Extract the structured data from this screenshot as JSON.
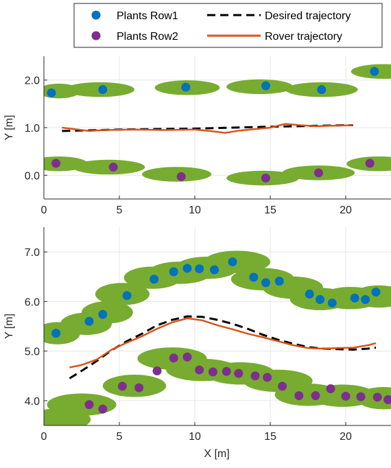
{
  "colors": {
    "row1": "#0072BD",
    "row2": "#7E2F8E",
    "desired": "#000000",
    "rover": "#D95319",
    "foliage": "#77AC30",
    "grid": "#e5e5e5",
    "axis": "#262626"
  },
  "legend": {
    "placement": "top",
    "entries": [
      {
        "label": "Plants Row1",
        "marker": "circle",
        "color": "#0072BD"
      },
      {
        "label": "Desired trajectory",
        "marker": "dashed-line",
        "color": "#000000"
      },
      {
        "label": "Plants Row2",
        "marker": "circle",
        "color": "#7E2F8E"
      },
      {
        "label": "Rover trajectory",
        "marker": "solid-line",
        "color": "#D95319"
      }
    ]
  },
  "chart_data": [
    {
      "type": "scatter",
      "ylabel": "Y [m]",
      "xlabel": "",
      "xlim": [
        0,
        23
      ],
      "ylim": [
        -0.5,
        2.5
      ],
      "xticks": [
        "0",
        "5",
        "10",
        "15",
        "20"
      ],
      "yticks": [
        "0.0",
        "1.0",
        "2.0"
      ],
      "ytick_values": [
        0,
        1,
        2
      ],
      "grid": true,
      "row1": [
        [
          0.5,
          1.73
        ],
        [
          3.9,
          1.8
        ],
        [
          9.4,
          1.85
        ],
        [
          14.7,
          1.88
        ],
        [
          18.4,
          1.8
        ],
        [
          21.9,
          2.18
        ]
      ],
      "row2": [
        [
          0.8,
          0.25
        ],
        [
          4.6,
          0.17
        ],
        [
          9.1,
          -0.03
        ],
        [
          14.7,
          -0.06
        ],
        [
          18.2,
          0.05
        ],
        [
          21.6,
          0.25
        ]
      ],
      "foliage_row1": [
        [
          1.0,
          1.77,
          2.8
        ],
        [
          3.7,
          1.8,
          4.6
        ],
        [
          9.5,
          1.84,
          4.3
        ],
        [
          14.3,
          1.86,
          4.4
        ],
        [
          18.4,
          1.8,
          4.8
        ],
        [
          22.5,
          2.18,
          4.3
        ]
      ],
      "foliage_row2": [
        [
          1.0,
          0.24,
          3.8
        ],
        [
          4.3,
          0.17,
          4.8
        ],
        [
          8.8,
          0.02,
          4.6
        ],
        [
          14.5,
          -0.06,
          4.8
        ],
        [
          18.2,
          0.05,
          4.8
        ],
        [
          22.2,
          0.24,
          4.3
        ]
      ],
      "desired_trajectory": [
        [
          1.2,
          0.93
        ],
        [
          5,
          0.96
        ],
        [
          10,
          0.98
        ],
        [
          15,
          1.02
        ],
        [
          20,
          1.05
        ],
        [
          20.5,
          1.05
        ]
      ],
      "rover_trajectory": [
        [
          1.2,
          1.0
        ],
        [
          2,
          0.97
        ],
        [
          3,
          0.93
        ],
        [
          4,
          0.95
        ],
        [
          6,
          0.96
        ],
        [
          8,
          0.95
        ],
        [
          10,
          0.96
        ],
        [
          11,
          0.93
        ],
        [
          12,
          0.89
        ],
        [
          13,
          0.94
        ],
        [
          14,
          0.97
        ],
        [
          15,
          1.0
        ],
        [
          16,
          1.08
        ],
        [
          17,
          1.05
        ],
        [
          18,
          1.03
        ],
        [
          19,
          1.04
        ],
        [
          20.5,
          1.05
        ]
      ]
    },
    {
      "type": "scatter",
      "ylabel": "Y [m]",
      "xlabel": "X [m]",
      "xlim": [
        0,
        23
      ],
      "ylim": [
        3.5,
        7.5
      ],
      "xticks": [
        "0",
        "5",
        "10",
        "15",
        "20"
      ],
      "yticks": [
        "4.0",
        "5.0",
        "6.0",
        "7.0"
      ],
      "ytick_values": [
        4,
        5,
        6,
        7
      ],
      "grid": true,
      "row1": [
        [
          0.8,
          5.36
        ],
        [
          3.0,
          5.6
        ],
        [
          3.9,
          5.74
        ],
        [
          5.5,
          6.12
        ],
        [
          7.3,
          6.45
        ],
        [
          8.6,
          6.6
        ],
        [
          9.5,
          6.67
        ],
        [
          10.3,
          6.66
        ],
        [
          11.3,
          6.64
        ],
        [
          12.5,
          6.8
        ],
        [
          13.9,
          6.49
        ],
        [
          14.7,
          6.38
        ],
        [
          15.6,
          6.41
        ],
        [
          17.6,
          6.15
        ],
        [
          18.3,
          6.04
        ],
        [
          19.1,
          5.97
        ],
        [
          20.6,
          6.07
        ],
        [
          21.3,
          6.04
        ],
        [
          22.0,
          6.19
        ]
      ],
      "row2": [
        [
          3.0,
          3.92
        ],
        [
          3.9,
          3.83
        ],
        [
          5.2,
          4.29
        ],
        [
          6.3,
          4.26
        ],
        [
          7.5,
          4.6
        ],
        [
          8.6,
          4.86
        ],
        [
          9.5,
          4.88
        ],
        [
          10.3,
          4.62
        ],
        [
          11.2,
          4.58
        ],
        [
          12.1,
          4.59
        ],
        [
          12.9,
          4.55
        ],
        [
          14.0,
          4.5
        ],
        [
          14.8,
          4.47
        ],
        [
          15.8,
          4.29
        ],
        [
          16.9,
          4.1
        ],
        [
          18.0,
          4.1
        ],
        [
          19.0,
          4.24
        ],
        [
          20.0,
          4.09
        ],
        [
          21.0,
          4.08
        ],
        [
          22.1,
          4.07
        ],
        [
          22.8,
          4.02
        ]
      ],
      "foliage_row1": [
        [
          0.9,
          5.36,
          3.0
        ],
        [
          2.8,
          5.55,
          3.4
        ],
        [
          4.2,
          5.78,
          3.4
        ],
        [
          5.2,
          6.15,
          3.6
        ],
        [
          7.2,
          6.48,
          3.8
        ],
        [
          9.0,
          6.58,
          4.2
        ],
        [
          10.8,
          6.68,
          4.2
        ],
        [
          12.8,
          6.8,
          4.4
        ],
        [
          14.5,
          6.45,
          4.2
        ],
        [
          16.5,
          6.28,
          4.0
        ],
        [
          18.3,
          6.05,
          4.0
        ],
        [
          20.3,
          6.07,
          4.0
        ],
        [
          22.2,
          6.1,
          3.6
        ]
      ],
      "foliage_row2": [
        [
          2.5,
          3.92,
          4.6
        ],
        [
          1.0,
          3.62,
          4.2
        ],
        [
          6.0,
          4.3,
          4.2
        ],
        [
          8.5,
          4.85,
          4.6
        ],
        [
          10.5,
          4.62,
          4.8
        ],
        [
          13.0,
          4.55,
          4.6
        ],
        [
          15.5,
          4.4,
          4.6
        ],
        [
          17.5,
          4.12,
          4.4
        ],
        [
          19.8,
          4.1,
          4.4
        ],
        [
          22.5,
          4.05,
          3.6
        ]
      ],
      "desired_trajectory": [
        [
          1.7,
          4.45
        ],
        [
          2.5,
          4.6
        ],
        [
          3.5,
          4.8
        ],
        [
          4.5,
          5.02
        ],
        [
          5.5,
          5.2
        ],
        [
          6.5,
          5.35
        ],
        [
          7.5,
          5.52
        ],
        [
          8.5,
          5.63
        ],
        [
          9.5,
          5.7
        ],
        [
          10.5,
          5.69
        ],
        [
          11.5,
          5.63
        ],
        [
          12.5,
          5.55
        ],
        [
          13.5,
          5.45
        ],
        [
          14.5,
          5.33
        ],
        [
          15.5,
          5.23
        ],
        [
          16.5,
          5.15
        ],
        [
          17.5,
          5.08
        ],
        [
          18.5,
          5.05
        ],
        [
          19.5,
          5.04
        ],
        [
          20.5,
          5.03
        ],
        [
          21.5,
          5.05
        ],
        [
          22,
          5.07
        ]
      ],
      "rover_trajectory": [
        [
          1.7,
          4.67
        ],
        [
          2.5,
          4.72
        ],
        [
          3.5,
          4.83
        ],
        [
          4.5,
          5.03
        ],
        [
          5.5,
          5.17
        ],
        [
          6.5,
          5.3
        ],
        [
          7.5,
          5.45
        ],
        [
          8.5,
          5.58
        ],
        [
          9.5,
          5.66
        ],
        [
          10.5,
          5.62
        ],
        [
          11.5,
          5.52
        ],
        [
          12.5,
          5.44
        ],
        [
          13.5,
          5.35
        ],
        [
          14.5,
          5.28
        ],
        [
          15.5,
          5.2
        ],
        [
          16.5,
          5.12
        ],
        [
          17.5,
          5.06
        ],
        [
          18.5,
          5.05
        ],
        [
          19.5,
          5.06
        ],
        [
          20.5,
          5.07
        ],
        [
          21.5,
          5.12
        ],
        [
          22,
          5.16
        ]
      ]
    }
  ]
}
